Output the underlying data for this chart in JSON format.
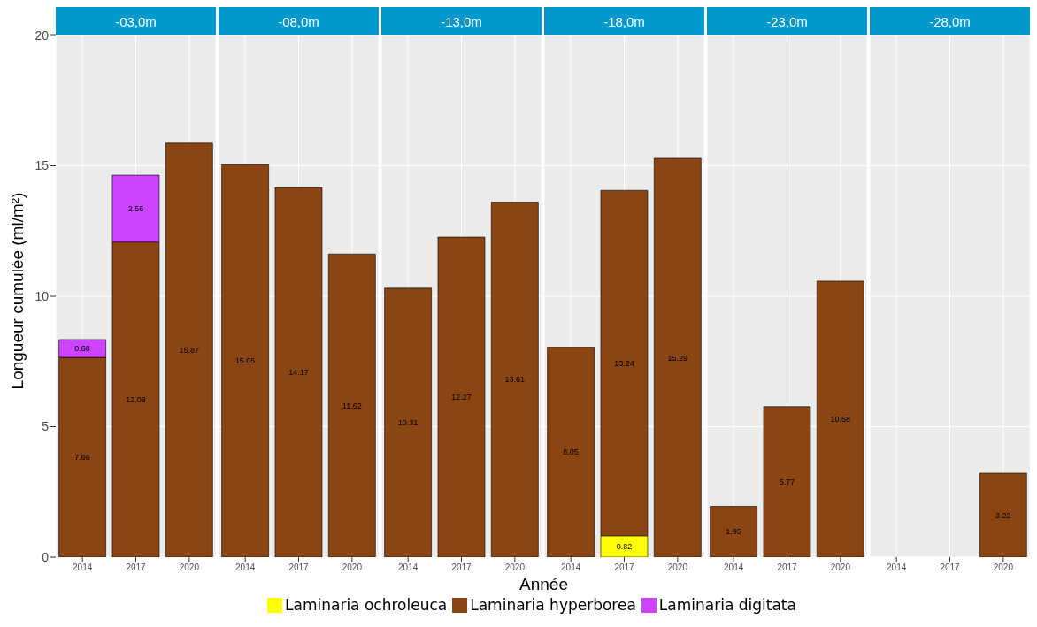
{
  "chart_data": [
    {
      "type": "bar",
      "title": "-03,0m",
      "ylabel": "Longueur cumulée (ml/m²)",
      "categories": [
        "2014",
        "2017",
        "2020"
      ],
      "stacked": true,
      "data_labels": true,
      "grid": true,
      "legend": "bottom",
      "ylim": [
        0,
        20
      ],
      "yticks": [
        0,
        5,
        10,
        15,
        20
      ],
      "series": [
        {
          "name": "Laminaria ochroleuca",
          "color": "#ffff00",
          "values": [
            null,
            null,
            null
          ]
        },
        {
          "name": "Laminaria hyperborea",
          "color": "#8b4513",
          "values": [
            7.66,
            12.08,
            15.87
          ]
        },
        {
          "name": "Laminaria digitata",
          "color": "#cc44ff",
          "values": [
            0.68,
            2.56,
            null
          ]
        }
      ]
    },
    {
      "type": "bar",
      "title": "-08,0m",
      "categories": [
        "2014",
        "2017",
        "2020"
      ],
      "stacked": true,
      "data_labels": true,
      "grid": true,
      "tick_labels": "x",
      "ylim": [
        0,
        20
      ],
      "series": [
        {
          "color": "#8b4513",
          "values": [
            15.05,
            14.17,
            11.62
          ]
        }
      ]
    },
    {
      "type": "bar",
      "title": "-13,0m",
      "xlabel": "Année",
      "categories": [
        "2014",
        "2017",
        "2020"
      ],
      "stacked": true,
      "data_labels": true,
      "grid": true,
      "tick_labels": "x",
      "ylim": [
        0,
        20
      ],
      "series": [
        {
          "color": "#8b4513",
          "values": [
            10.31,
            12.27,
            13.61
          ]
        }
      ]
    },
    {
      "type": "bar",
      "title": "-18,0m",
      "categories": [
        "2014",
        "2017",
        "2020"
      ],
      "stacked": true,
      "data_labels": true,
      "grid": true,
      "tick_labels": "x",
      "ylim": [
        0,
        20
      ],
      "series": [
        {
          "color": "#ffff00",
          "values": [
            null,
            0.82,
            null
          ]
        },
        {
          "color": "#8b4513",
          "values": [
            8.05,
            13.24,
            15.29
          ]
        }
      ]
    },
    {
      "type": "bar",
      "title": "-23,0m",
      "categories": [
        "2014",
        "2017",
        "2020"
      ],
      "stacked": true,
      "data_labels": true,
      "grid": true,
      "tick_labels": "x",
      "ylim": [
        0,
        20
      ],
      "series": [
        {
          "color": "#8b4513",
          "values": [
            1.95,
            5.77,
            10.58
          ]
        }
      ]
    },
    {
      "type": "bar",
      "title": "-28,0m",
      "categories": [
        "2014",
        "2017",
        "2020"
      ],
      "stacked": true,
      "data_labels": true,
      "grid": true,
      "tick_labels": "x",
      "ylim": [
        0,
        20
      ],
      "series": [
        {
          "color": "#8b4513",
          "values": [
            null,
            null,
            3.22
          ]
        }
      ]
    }
  ]
}
